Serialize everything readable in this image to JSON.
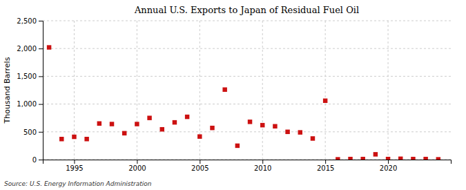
{
  "chart_data": {
    "type": "scatter",
    "title": "Annual U.S. Exports to Japan of Residual Fuel Oil",
    "y_label": "Thousand Barrels",
    "annotations": [
      "Source: U.S. Energy Information Administration"
    ],
    "color": "#cc1111",
    "marker": "square",
    "grid": true,
    "xlim": [
      1992.5,
      2025
    ],
    "ylim": [
      0,
      2500
    ],
    "xticks": [
      1995,
      2000,
      2005,
      2010,
      2015,
      2020
    ],
    "yticks": [
      0,
      500,
      {
        "value": 1000,
        "label": "1,000"
      },
      {
        "value": 1500,
        "label": "1,500"
      },
      {
        "value": 2000,
        "label": "2,000"
      },
      {
        "value": 2500,
        "label": "2,500"
      }
    ],
    "x": [
      1993,
      1994,
      1995,
      1996,
      1997,
      1998,
      1999,
      2000,
      2001,
      2002,
      2003,
      2004,
      2005,
      2006,
      2007,
      2008,
      2009,
      2010,
      2011,
      2012,
      2013,
      2014,
      2015,
      2016,
      2017,
      2018,
      2019,
      2020,
      2021,
      2022,
      2023,
      2024
    ],
    "values": [
      2020,
      370,
      410,
      370,
      650,
      640,
      475,
      640,
      750,
      545,
      670,
      770,
      415,
      570,
      1260,
      250,
      680,
      620,
      600,
      500,
      490,
      380,
      1060,
      5,
      10,
      10,
      95,
      10,
      15,
      10,
      10,
      5
    ]
  }
}
